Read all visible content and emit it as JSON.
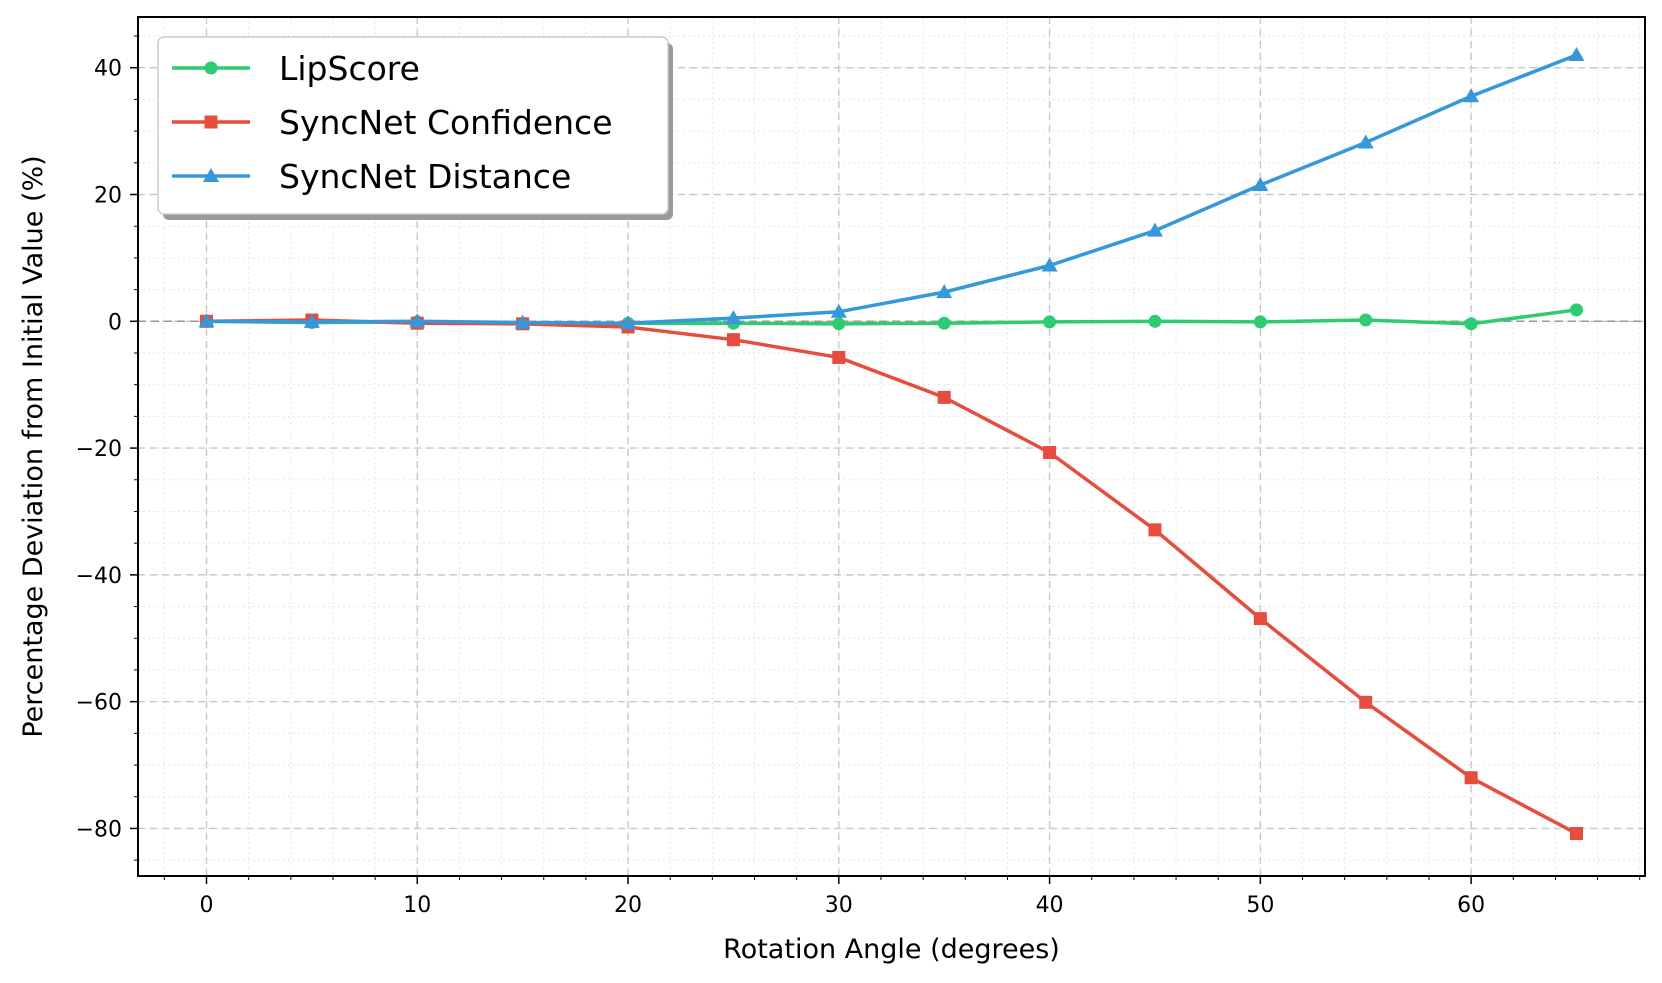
{
  "chart_data": {
    "type": "line",
    "title": "",
    "xlabel": "Rotation Angle (degrees)",
    "ylabel": "Percentage Deviation from Initial Value (%)",
    "xlim": [
      -3.25,
      68.25
    ],
    "ylim": [
      -87.5,
      48.0
    ],
    "x_ticks": [
      0,
      10,
      20,
      30,
      40,
      50,
      60
    ],
    "y_ticks": [
      40,
      20,
      0,
      -20,
      -40,
      -60,
      -80
    ],
    "x_tick_labels": [
      "0",
      "10",
      "20",
      "30",
      "40",
      "50",
      "60"
    ],
    "y_tick_labels": [
      "40",
      "20",
      "0",
      "−20",
      "−40",
      "−60",
      "−80"
    ],
    "grid": true,
    "reference_line": 0,
    "legend_position": "upper-left",
    "x": [
      0,
      5,
      10,
      15,
      20,
      25,
      30,
      35,
      40,
      45,
      50,
      55,
      60,
      65
    ],
    "series": [
      {
        "name": "LipScore",
        "color": "#2ecc71",
        "marker": "circle",
        "values": [
          0,
          -0.2,
          -0.1,
          -0.3,
          -0.3,
          -0.3,
          -0.4,
          -0.3,
          -0.1,
          0,
          -0.1,
          0.2,
          -0.4,
          1.8
        ]
      },
      {
        "name": "SyncNet Confidence",
        "color": "#e74c3c",
        "marker": "square",
        "values": [
          0,
          0.2,
          -0.3,
          -0.4,
          -0.9,
          -2.9,
          -5.7,
          -12.0,
          -20.7,
          -32.9,
          -46.9,
          -60.1,
          -72.0,
          -80.8
        ]
      },
      {
        "name": "SyncNet Distance",
        "color": "#3498db",
        "marker": "triangle",
        "values": [
          0,
          -0.1,
          0,
          -0.2,
          -0.3,
          0.5,
          1.5,
          4.6,
          8.8,
          14.3,
          21.5,
          28.2,
          35.5,
          42.0
        ]
      }
    ]
  }
}
